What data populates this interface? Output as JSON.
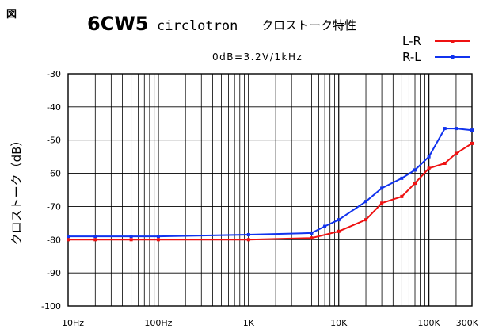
{
  "corner_mark": "図",
  "chart_data": {
    "type": "line",
    "title_main": "6CW5",
    "title_mid": "circlotron",
    "title_jp": "クロストーク特性",
    "subtitle": "0dB=3.2V/1kHz",
    "xlabel": "",
    "ylabel": "クロストーク（dB）",
    "xscale": "log",
    "xlim": [
      10,
      300000
    ],
    "ylim": [
      -100,
      -30
    ],
    "grid": true,
    "legend_position": "top-right",
    "x_ticks": [
      {
        "value": 10,
        "label": "10Hz"
      },
      {
        "value": 100,
        "label": "100Hz"
      },
      {
        "value": 1000,
        "label": "1K"
      },
      {
        "value": 10000,
        "label": "10K"
      },
      {
        "value": 100000,
        "label": "100K"
      },
      {
        "value": 300000,
        "label": "300K"
      }
    ],
    "y_ticks": [
      {
        "value": -30,
        "label": "-30"
      },
      {
        "value": -40,
        "label": "-40"
      },
      {
        "value": -50,
        "label": "-50"
      },
      {
        "value": -60,
        "label": "-60"
      },
      {
        "value": -70,
        "label": "-70"
      },
      {
        "value": -80,
        "label": "-80"
      },
      {
        "value": -90,
        "label": "-90"
      },
      {
        "value": -100,
        "label": "-100"
      }
    ],
    "series": [
      {
        "name": "L-R",
        "color": "#ee1111",
        "points": [
          [
            10,
            -80
          ],
          [
            20,
            -80
          ],
          [
            50,
            -80
          ],
          [
            100,
            -80
          ],
          [
            1000,
            -80
          ],
          [
            5000,
            -79.5
          ],
          [
            10000,
            -77.5
          ],
          [
            20000,
            -74
          ],
          [
            30000,
            -69
          ],
          [
            50000,
            -67
          ],
          [
            70000,
            -63
          ],
          [
            100000,
            -58.5
          ],
          [
            150000,
            -57
          ],
          [
            200000,
            -54
          ],
          [
            300000,
            -51
          ]
        ]
      },
      {
        "name": "R-L",
        "color": "#1133ee",
        "points": [
          [
            10,
            -79
          ],
          [
            20,
            -79
          ],
          [
            50,
            -79
          ],
          [
            100,
            -79
          ],
          [
            1000,
            -78.5
          ],
          [
            5000,
            -78
          ],
          [
            7000,
            -76
          ],
          [
            10000,
            -74
          ],
          [
            20000,
            -68.5
          ],
          [
            30000,
            -64.5
          ],
          [
            50000,
            -61.5
          ],
          [
            70000,
            -59
          ],
          [
            100000,
            -55
          ],
          [
            150000,
            -46.5
          ],
          [
            200000,
            -46.5
          ],
          [
            300000,
            -47
          ]
        ]
      }
    ]
  }
}
